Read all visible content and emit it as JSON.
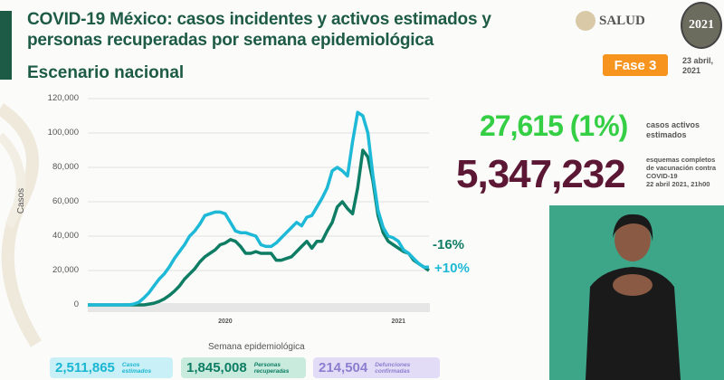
{
  "header": {
    "title_line1": "COVID-19 México: casos incidentes y activos estimados y",
    "title_line2": "personas recuperadas por semana epidemiológica",
    "subtitle": "Escenario nacional",
    "brand": "SALUD",
    "event_logo": "2021",
    "phase_badge": "Fase 3",
    "date_line1": "23 abril,",
    "date_line2": "2021"
  },
  "stats": {
    "active_value": "27,615 (1%)",
    "active_label_1": "casos activos",
    "active_label_2": "estimados",
    "vaccine_value": "5,347,232",
    "vaccine_label_1": "esquemas completos",
    "vaccine_label_2": "de vacunación contra",
    "vaccine_label_3": "COVID-19",
    "vaccine_label_4": "22 abril 2021, 21h00"
  },
  "cards": [
    {
      "value": "2,511,865",
      "label_1": "Casos",
      "label_2": "estimados"
    },
    {
      "value": "1,845,008",
      "label_1": "Personas",
      "label_2": "recuperadas"
    },
    {
      "value": "214,504",
      "label_1": "Defunciones",
      "label_2": "confirmadas"
    }
  ],
  "colors": {
    "cyan": "#1db9d6",
    "green": "#0f7d64",
    "active": "#35cf45",
    "vaccine": "#5b1733",
    "phase": "#f7941d"
  },
  "chart_data": {
    "type": "line",
    "title": "",
    "xlabel": "Semana epidemiológica",
    "ylabel": "Casos",
    "ylim": [
      0,
      120000
    ],
    "yticks": [
      "0",
      "20,000",
      "40,000",
      "60,000",
      "80,000",
      "100,000",
      "120,000"
    ],
    "ytick_values": [
      0,
      20000,
      40000,
      60000,
      80000,
      100000,
      120000
    ],
    "year_labels": [
      {
        "label": "2020",
        "week_index": 27
      },
      {
        "label": "2021",
        "week_index": 61
      }
    ],
    "grid": true,
    "series": [
      {
        "name": "Casos estimados",
        "color": "#1db9d6",
        "end_label": "+10%",
        "values": [
          0,
          0,
          0,
          0,
          0,
          0,
          0,
          0,
          0,
          500,
          1500,
          4000,
          7000,
          11000,
          15000,
          18000,
          22000,
          27000,
          31000,
          35000,
          40000,
          43000,
          47000,
          52000,
          53000,
          54000,
          54000,
          53000,
          48000,
          43000,
          42000,
          42000,
          41000,
          40000,
          35000,
          34000,
          34000,
          36000,
          39000,
          42000,
          45000,
          48000,
          46000,
          51000,
          52000,
          57000,
          62000,
          68000,
          78000,
          80000,
          78000,
          75000,
          95000,
          112000,
          110000,
          100000,
          75000,
          55000,
          45000,
          40000,
          39000,
          37000,
          32000,
          30000,
          27000,
          24000,
          22000,
          22000
        ]
      },
      {
        "name": "Personas recuperadas",
        "color": "#0f7d64",
        "end_label": "-16%",
        "values": [
          0,
          0,
          0,
          0,
          0,
          0,
          0,
          0,
          0,
          0,
          0,
          0,
          500,
          1000,
          2000,
          3500,
          5500,
          8000,
          11000,
          15000,
          18000,
          21000,
          25000,
          28000,
          30000,
          32000,
          35000,
          36000,
          38000,
          37000,
          34000,
          30000,
          30000,
          31000,
          30000,
          30000,
          30000,
          26000,
          26000,
          27000,
          28000,
          31000,
          34000,
          37000,
          33000,
          37000,
          37000,
          43000,
          48000,
          57000,
          60000,
          56000,
          53000,
          68000,
          90000,
          86000,
          72000,
          52000,
          42000,
          37000,
          35000,
          33000,
          31000,
          30000,
          26000,
          24000,
          22000,
          20000
        ]
      }
    ]
  }
}
